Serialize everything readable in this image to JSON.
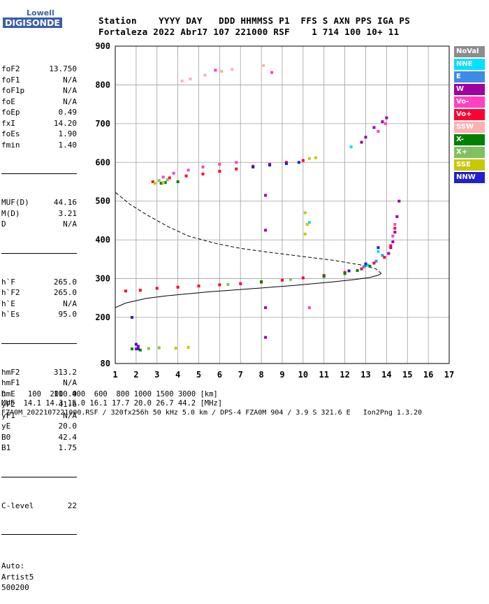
{
  "logo": {
    "top": "Lowell",
    "main": "DIGISONDE"
  },
  "header": {
    "row1": "Station    YYYY DAY   DDD HHMMSS P1  FFS S AXN PPS IGA PS",
    "row2": "Fortaleza 2022 Abr17 107 221000 RSF    1 714 100 10+ 11"
  },
  "params": {
    "group1": [
      {
        "k": "foF2",
        "v": "13.750"
      },
      {
        "k": "foF1",
        "v": "N/A"
      },
      {
        "k": "foF1p",
        "v": "N/A"
      },
      {
        "k": "foE",
        "v": "N/A"
      },
      {
        "k": "foEp",
        "v": "0.49"
      },
      {
        "k": "fxI",
        "v": "14.20"
      },
      {
        "k": "foEs",
        "v": "1.90"
      },
      {
        "k": "fmin",
        "v": "1.40"
      }
    ],
    "group2": [
      {
        "k": "MUF(D)",
        "v": "44.16"
      },
      {
        "k": "M(D)",
        "v": "3.21"
      },
      {
        "k": "D",
        "v": "N/A"
      }
    ],
    "group3": [
      {
        "k": "h`F",
        "v": "265.0"
      },
      {
        "k": "h`F2",
        "v": "265.0"
      },
      {
        "k": "h`E",
        "v": "N/A"
      },
      {
        "k": "h`Es",
        "v": "95.0"
      }
    ],
    "group4": [
      {
        "k": "hmF2",
        "v": "313.2"
      },
      {
        "k": "hmF1",
        "v": "N/A"
      },
      {
        "k": "hmE",
        "v": "110.0"
      },
      {
        "k": "yF2",
        "v": "41.6"
      },
      {
        "k": "yF1",
        "v": "N/A"
      },
      {
        "k": "yE",
        "v": "20.0"
      },
      {
        "k": "B0",
        "v": "42.4"
      },
      {
        "k": "B1",
        "v": "1.75"
      }
    ],
    "group5": [
      {
        "k": "C-level",
        "v": "22"
      }
    ],
    "autoscale": [
      "Auto:",
      "Artist5",
      "500200"
    ]
  },
  "legend": [
    {
      "label": "NoVal",
      "color": "#8c8c8c"
    },
    {
      "label": "NNE",
      "color": "#00e0ff"
    },
    {
      "label": "E",
      "color": "#3c8ce8"
    },
    {
      "label": "W",
      "color": "#a000a0"
    },
    {
      "label": "Vo-",
      "color": "#ff40c0"
    },
    {
      "label": "Vo+",
      "color": "#ff0030"
    },
    {
      "label": "SSW",
      "color": "#ffb0b0"
    },
    {
      "label": "X-",
      "color": "#008000"
    },
    {
      "label": "X+",
      "color": "#80c060"
    },
    {
      "label": "SSE",
      "color": "#c8c800"
    },
    {
      "label": "NNW",
      "color": "#2020d0"
    }
  ],
  "footer": {
    "line1": "D     100  200  400  600  800 1000 1500 3000 [km]",
    "line2": "MUF  14.1 14.3 15.0 16.1 17.7 20.0 26.7 44.2 [MHz]",
    "line3": "FZA0M_2022107221000.RSF / 320fx256h 50 kHz 5.0 km / DPS-4 FZA0M 904 / 3.9 S 321.6 E   Ion2Png 1.3.20"
  },
  "chart_data": {
    "type": "scatter",
    "x_ticks": [
      1,
      2,
      3,
      4,
      5,
      6,
      7,
      8,
      9,
      10,
      11,
      12,
      13,
      14,
      15,
      16,
      17
    ],
    "y_ticks": [
      80,
      200,
      300,
      400,
      500,
      600,
      700,
      800,
      900
    ],
    "xlim": [
      1,
      17
    ],
    "ylim": [
      80,
      900
    ],
    "grid": true,
    "legend_placement": "right",
    "series": [
      {
        "name": "NoVal",
        "color": "#8c8c8c",
        "points": []
      },
      {
        "name": "NNE",
        "color": "#00e0ff",
        "points": [
          [
            12.3,
            640
          ],
          [
            13.1,
            335
          ],
          [
            13.6,
            370
          ],
          [
            10.3,
            445
          ]
        ]
      },
      {
        "name": "E",
        "color": "#3c8ce8",
        "points": [
          [
            13.5,
            345
          ],
          [
            13.8,
            360
          ],
          [
            12.9,
            330
          ]
        ]
      },
      {
        "name": "W",
        "color": "#a000a0",
        "points": [
          [
            14.0,
            715
          ],
          [
            13.8,
            705
          ],
          [
            13.4,
            690
          ],
          [
            13.0,
            665
          ],
          [
            12.8,
            652
          ],
          [
            14.2,
            380
          ],
          [
            14.3,
            395
          ],
          [
            14.4,
            420
          ],
          [
            14.5,
            460
          ],
          [
            14.6,
            500
          ],
          [
            14.1,
            365
          ],
          [
            8.2,
            425
          ],
          [
            8.2,
            515
          ],
          [
            8.2,
            225
          ],
          [
            8.2,
            148
          ],
          [
            2.1,
            125
          ],
          [
            2.0,
            118
          ]
        ]
      },
      {
        "name": "Vo-",
        "color": "#ff40c0",
        "points": [
          [
            13.95,
            700
          ],
          [
            13.6,
            680
          ],
          [
            14.3,
            410
          ],
          [
            14.4,
            440
          ],
          [
            10.3,
            225
          ],
          [
            3.3,
            562
          ],
          [
            3.8,
            572
          ],
          [
            4.5,
            580
          ],
          [
            5.2,
            588
          ],
          [
            6.0,
            595
          ],
          [
            6.8,
            600
          ],
          [
            8.5,
            832
          ],
          [
            5.8,
            838
          ]
        ]
      },
      {
        "name": "Vo+",
        "color": "#ff0030",
        "points": [
          [
            1.5,
            268
          ],
          [
            2.2,
            270
          ],
          [
            3.0,
            275
          ],
          [
            4.0,
            278
          ],
          [
            5.0,
            281
          ],
          [
            6.0,
            284
          ],
          [
            7.0,
            287
          ],
          [
            8.0,
            291
          ],
          [
            9.0,
            296
          ],
          [
            10.0,
            302
          ],
          [
            11.0,
            308
          ],
          [
            12.0,
            316
          ],
          [
            12.8,
            325
          ],
          [
            13.4,
            340
          ],
          [
            13.9,
            355
          ],
          [
            14.2,
            385
          ],
          [
            14.4,
            430
          ],
          [
            2.8,
            550
          ],
          [
            3.6,
            560
          ],
          [
            4.4,
            565
          ],
          [
            5.2,
            570
          ],
          [
            6.0,
            577
          ],
          [
            6.8,
            583
          ],
          [
            7.6,
            590
          ],
          [
            8.4,
            595
          ],
          [
            9.2,
            600
          ],
          [
            10.0,
            605
          ]
        ]
      },
      {
        "name": "SSW",
        "color": "#ffb0b0",
        "points": [
          [
            4.2,
            810
          ],
          [
            4.6,
            815
          ],
          [
            5.3,
            825
          ],
          [
            6.1,
            835
          ],
          [
            6.6,
            840
          ],
          [
            8.1,
            850
          ]
        ]
      },
      {
        "name": "X-",
        "color": "#008000",
        "points": [
          [
            1.8,
            118
          ],
          [
            2.2,
            115
          ],
          [
            3.4,
            548
          ],
          [
            4.0,
            550
          ],
          [
            3.2,
            546
          ],
          [
            8.0,
            292
          ],
          [
            11.0,
            306
          ],
          [
            12.0,
            313
          ],
          [
            12.6,
            321
          ],
          [
            13.2,
            332
          ]
        ]
      },
      {
        "name": "X+",
        "color": "#80c060",
        "points": [
          [
            3.1,
            553
          ],
          [
            3.5,
            555
          ],
          [
            2.6,
            119
          ],
          [
            3.1,
            121
          ],
          [
            6.4,
            285
          ],
          [
            9.4,
            298
          ]
        ]
      },
      {
        "name": "SSE",
        "color": "#c8c800",
        "points": [
          [
            2.9,
            546
          ],
          [
            3.3,
            548
          ],
          [
            10.3,
            610
          ],
          [
            10.6,
            612
          ],
          [
            10.1,
            470
          ],
          [
            10.2,
            440
          ],
          [
            10.1,
            415
          ],
          [
            3.9,
            120
          ],
          [
            4.5,
            122
          ]
        ]
      },
      {
        "name": "NNW",
        "color": "#2020d0",
        "points": [
          [
            1.8,
            200
          ],
          [
            2.0,
            130
          ],
          [
            7.6,
            588
          ],
          [
            8.4,
            593
          ],
          [
            9.2,
            597
          ],
          [
            9.8,
            600
          ],
          [
            2.1,
            118
          ],
          [
            12.2,
            320
          ],
          [
            13.6,
            380
          ],
          [
            13.0,
            338
          ]
        ]
      }
    ],
    "profile_curves": [
      {
        "style": "solid",
        "points": [
          [
            1.0,
            225
          ],
          [
            1.5,
            237
          ],
          [
            2.5,
            249
          ],
          [
            3.5,
            256
          ],
          [
            4.5,
            261
          ],
          [
            5.5,
            266
          ],
          [
            6.5,
            270
          ],
          [
            7.5,
            274
          ],
          [
            8.5,
            278
          ],
          [
            9.5,
            282
          ],
          [
            10.5,
            287
          ],
          [
            11.5,
            292
          ],
          [
            12.5,
            298
          ],
          [
            13.2,
            303
          ],
          [
            13.6,
            309
          ],
          [
            13.75,
            313
          ]
        ]
      },
      {
        "style": "dashed",
        "points": [
          [
            13.75,
            313
          ],
          [
            13.5,
            325
          ],
          [
            12.8,
            335
          ],
          [
            11.5,
            347
          ],
          [
            10.0,
            357
          ],
          [
            8.5,
            367
          ],
          [
            7.0,
            378
          ],
          [
            5.8,
            391
          ],
          [
            4.5,
            410
          ],
          [
            3.5,
            435
          ],
          [
            2.5,
            465
          ],
          [
            1.7,
            492
          ],
          [
            1.0,
            523
          ]
        ]
      }
    ]
  }
}
